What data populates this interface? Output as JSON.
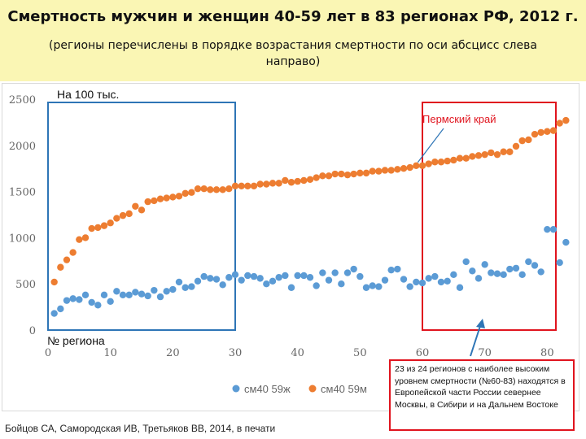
{
  "header": {
    "title": "Смертность мужчин и женщин 40-59 лет в 83 регионах РФ,  2012 г.",
    "subtitle": "(регионы перечислены в порядке возрастания смертности  по оси абсцисс слева направо)"
  },
  "footer": {
    "credit": "Бойцов СА, Самородская ИВ, Третьяков ВВ, 2014, в печати"
  },
  "callout": {
    "text": "23 из 24 регионов с наиболее высоким уровнем смертности (№60-83)  находятся в Европейской части России севернее Москвы, в Сибири  и на Дальнем Востоке"
  },
  "colors": {
    "women": "#5b9bd5",
    "men": "#ed7d31",
    "frame_blue": "#2e75b6",
    "frame_red": "#e0141e"
  },
  "chart_data": {
    "type": "scatter",
    "ylabel": "На 100 тыс.",
    "xlabel": "№ региона",
    "xlim": [
      0,
      84
    ],
    "ylim": [
      0,
      2500
    ],
    "xticks": [
      0,
      10,
      20,
      30,
      40,
      50,
      60,
      70,
      80
    ],
    "yticks": [
      0,
      500,
      1000,
      1500,
      2000,
      2500
    ],
    "grid": false,
    "legend_position": "bottom",
    "annotation": {
      "label": "Пермский край",
      "x": 59,
      "y": 1780
    },
    "highlight_ranges": [
      {
        "x": [
          0,
          30
        ],
        "color": "blue"
      },
      {
        "x": [
          60,
          83
        ],
        "color": "red"
      }
    ],
    "series": [
      {
        "name": "см40 59ж",
        "x": [
          1,
          2,
          3,
          4,
          5,
          6,
          7,
          8,
          9,
          10,
          11,
          12,
          13,
          14,
          15,
          16,
          17,
          18,
          19,
          20,
          21,
          22,
          23,
          24,
          25,
          26,
          27,
          28,
          29,
          30,
          31,
          32,
          33,
          34,
          35,
          36,
          37,
          38,
          39,
          40,
          41,
          42,
          43,
          44,
          45,
          46,
          47,
          48,
          49,
          50,
          51,
          52,
          53,
          54,
          55,
          56,
          57,
          58,
          59,
          60,
          61,
          62,
          63,
          64,
          65,
          66,
          67,
          68,
          69,
          70,
          71,
          72,
          73,
          74,
          75,
          76,
          77,
          78,
          79,
          80,
          81,
          82,
          83
        ],
        "y": [
          180,
          230,
          320,
          340,
          330,
          380,
          300,
          270,
          380,
          310,
          420,
          380,
          380,
          410,
          390,
          370,
          430,
          360,
          420,
          440,
          520,
          460,
          470,
          530,
          580,
          560,
          550,
          490,
          570,
          600,
          540,
          590,
          580,
          560,
          500,
          530,
          570,
          590,
          460,
          590,
          590,
          570,
          480,
          620,
          540,
          620,
          500,
          620,
          660,
          580,
          460,
          480,
          470,
          540,
          650,
          660,
          550,
          470,
          520,
          510,
          560,
          580,
          520,
          530,
          600,
          460,
          740,
          640,
          560,
          710,
          620,
          610,
          600,
          660,
          670,
          600,
          740,
          700,
          630,
          1090,
          1090,
          730,
          950
        ]
      },
      {
        "name": "см40 59м",
        "x": [
          1,
          2,
          3,
          4,
          5,
          6,
          7,
          8,
          9,
          10,
          11,
          12,
          13,
          14,
          15,
          16,
          17,
          18,
          19,
          20,
          21,
          22,
          23,
          24,
          25,
          26,
          27,
          28,
          29,
          30,
          31,
          32,
          33,
          34,
          35,
          36,
          37,
          38,
          39,
          40,
          41,
          42,
          43,
          44,
          45,
          46,
          47,
          48,
          49,
          50,
          51,
          52,
          53,
          54,
          55,
          56,
          57,
          58,
          59,
          60,
          61,
          62,
          63,
          64,
          65,
          66,
          67,
          68,
          69,
          70,
          71,
          72,
          73,
          74,
          75,
          76,
          77,
          78,
          79,
          80,
          81,
          82,
          83
        ],
        "y": [
          520,
          680,
          760,
          840,
          980,
          1000,
          1100,
          1110,
          1130,
          1160,
          1210,
          1240,
          1260,
          1340,
          1300,
          1390,
          1400,
          1420,
          1430,
          1440,
          1450,
          1480,
          1490,
          1530,
          1530,
          1520,
          1520,
          1520,
          1530,
          1560,
          1560,
          1560,
          1560,
          1580,
          1580,
          1590,
          1590,
          1620,
          1600,
          1610,
          1620,
          1630,
          1650,
          1670,
          1670,
          1690,
          1690,
          1680,
          1690,
          1700,
          1700,
          1720,
          1720,
          1730,
          1730,
          1740,
          1750,
          1760,
          1780,
          1780,
          1800,
          1820,
          1820,
          1830,
          1840,
          1860,
          1860,
          1880,
          1890,
          1900,
          1920,
          1900,
          1930,
          1930,
          1990,
          2050,
          2060,
          2120,
          2140,
          2150,
          2160,
          2240,
          2270
        ]
      }
    ]
  }
}
